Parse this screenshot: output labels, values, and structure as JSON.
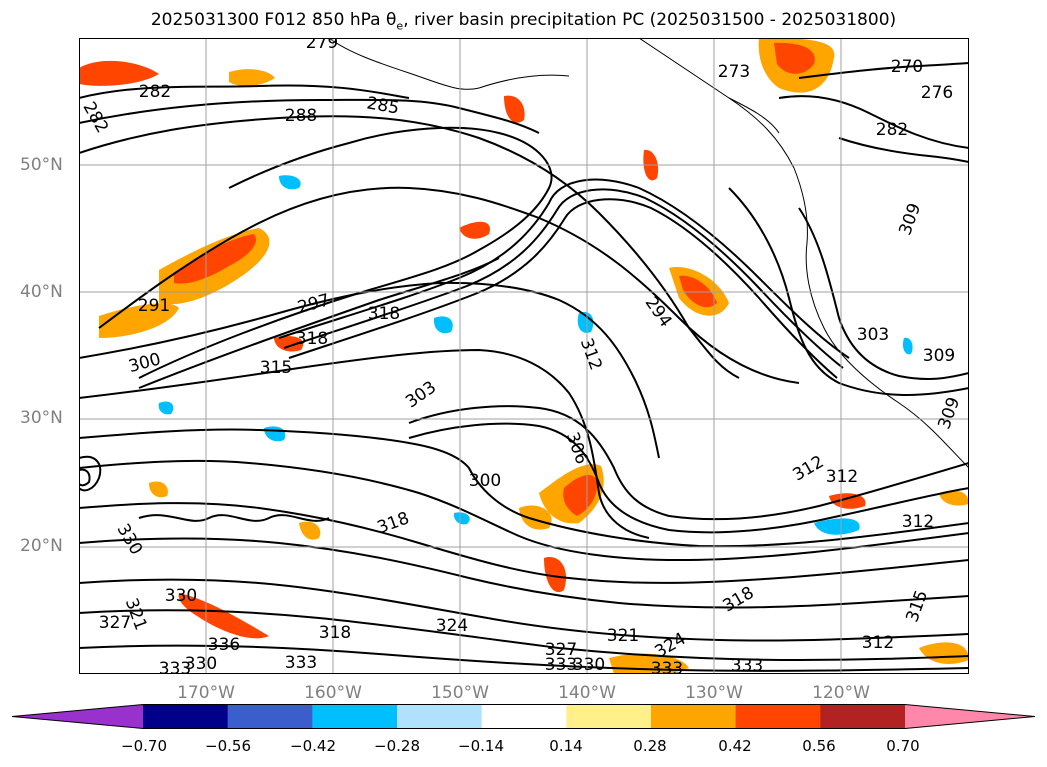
{
  "title": {
    "date_fcst": "2025031300 F012 850 hPa",
    "theta_sym": "θ",
    "theta_sub": "e",
    "rest": ", river basin precipitation PC (2025031500 - 2025031800)"
  },
  "map": {
    "lat_labels": [
      "50°N",
      "40°N",
      "30°N",
      "20°N"
    ],
    "lon_labels": [
      "170°W",
      "160°W",
      "150°W",
      "140°W",
      "130°W",
      "120°W"
    ],
    "contour_labels": [
      "279",
      "282",
      "282",
      "288",
      "285",
      "273",
      "270",
      "276",
      "282",
      "291",
      "297",
      "318",
      "318",
      "300",
      "315",
      "294",
      "312",
      "303",
      "309",
      "309",
      "303",
      "306",
      "300",
      "312",
      "312",
      "312",
      "318",
      "330",
      "336",
      "330",
      "333",
      "333",
      "321",
      "324",
      "327",
      "330",
      "333",
      "321",
      "324",
      "333",
      "333",
      "315",
      "318",
      "312",
      "327",
      "318",
      "309",
      "330"
    ]
  },
  "colorbar": {
    "colors": [
      "#9932cc",
      "#00008b",
      "#3a5fcd",
      "#00bfff",
      "#b0e2ff",
      "#ffffff",
      "#fff08a",
      "#ffa500",
      "#ff4500",
      "#b22222",
      "#ff88aa"
    ],
    "tick_labels": [
      "−0.70",
      "−0.56",
      "−0.42",
      "−0.28",
      "−0.14",
      "0.14",
      "0.28",
      "0.42",
      "0.56",
      "0.70"
    ]
  }
}
